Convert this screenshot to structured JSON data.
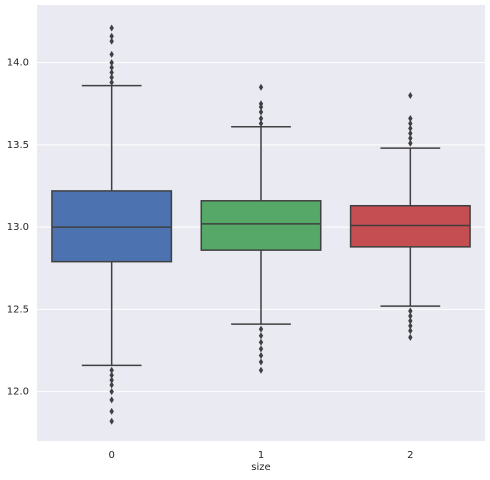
{
  "chart_data": {
    "type": "box",
    "xlabel": "size",
    "categories": [
      "0",
      "1",
      "2"
    ],
    "colors": [
      "#4c72b0",
      "#55a868",
      "#c44e52"
    ],
    "boxes": [
      {
        "whisker_low": 12.16,
        "q1": 12.79,
        "median": 13.0,
        "q3": 13.22,
        "whisker_high": 13.86,
        "outliers": [
          13.88,
          13.91,
          13.94,
          13.97,
          14.0,
          14.05,
          14.13,
          14.16,
          14.21,
          12.13,
          12.1,
          12.07,
          12.04,
          12.0,
          11.95,
          11.88,
          11.82
        ]
      },
      {
        "whisker_low": 12.41,
        "q1": 12.86,
        "median": 13.02,
        "q3": 13.16,
        "whisker_high": 13.61,
        "outliers": [
          13.63,
          13.66,
          13.7,
          13.73,
          13.75,
          13.85,
          12.38,
          12.34,
          12.3,
          12.26,
          12.22,
          12.18,
          12.13
        ]
      },
      {
        "whisker_low": 12.52,
        "q1": 12.88,
        "median": 13.01,
        "q3": 13.13,
        "whisker_high": 13.48,
        "outliers": [
          13.51,
          13.54,
          13.57,
          13.6,
          13.63,
          13.66,
          13.8,
          12.49,
          12.46,
          12.43,
          12.4,
          12.37,
          12.33
        ]
      }
    ],
    "ylim": [
      11.7,
      14.35
    ],
    "yticks": [
      {
        "value": 12,
        "label": "12.0"
      },
      12.5,
      {
        "value": 13,
        "label": "13.0"
      },
      13.5,
      {
        "value": 14,
        "label": "14.0"
      }
    ],
    "grid": true
  }
}
